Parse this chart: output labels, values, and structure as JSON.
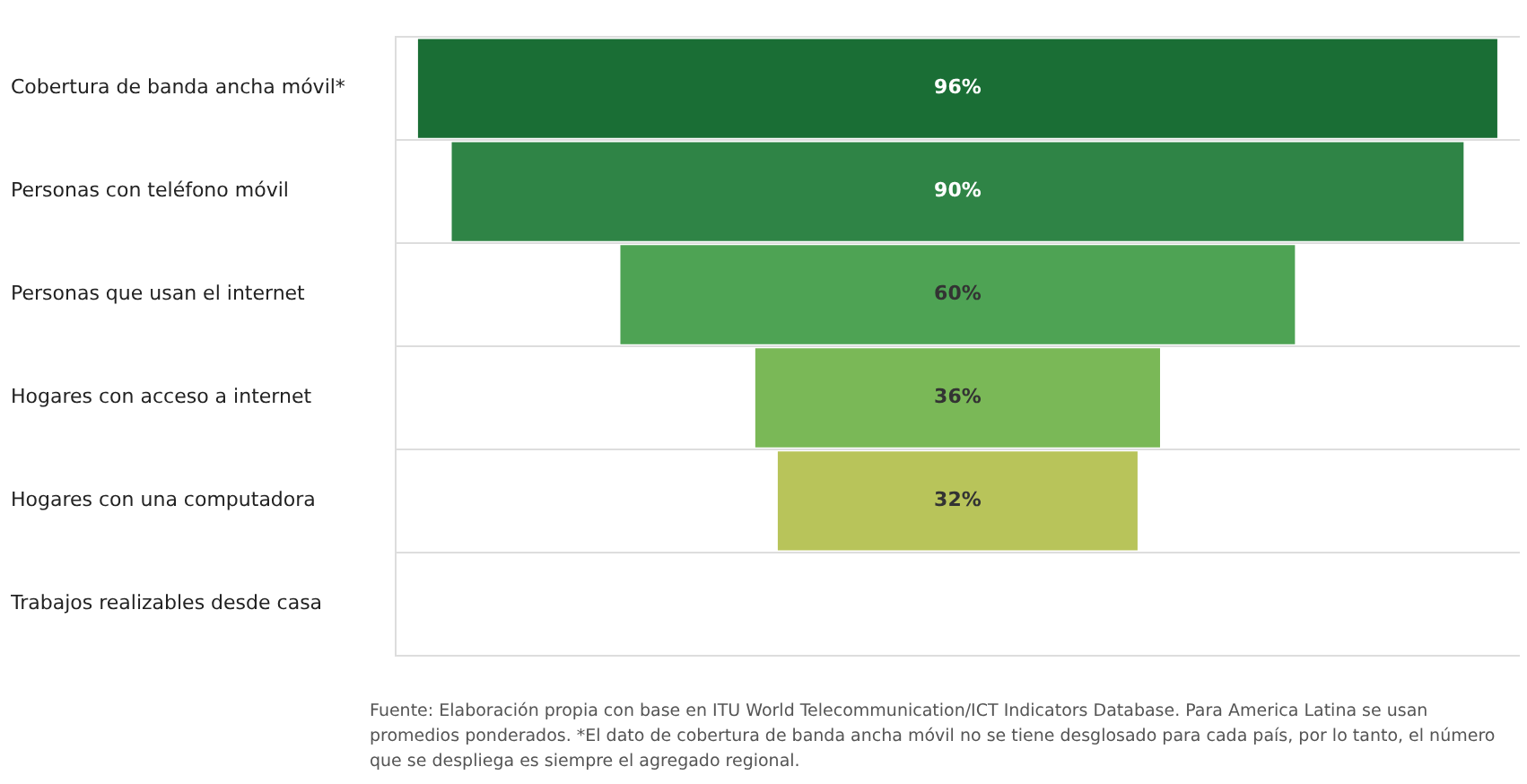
{
  "chart_data": {
    "type": "other",
    "categories": [
      "Cobertura de banda ancha móvil*",
      "Personas con teléfono móvil",
      "Personas que usan el internet",
      "Hogares con acceso a internet",
      "Hogares con una computadora",
      "Trabajos realizables desde casa"
    ],
    "values": [
      96,
      90,
      60,
      36,
      32,
      null
    ],
    "colors": [
      "#1a6e35",
      "#2f8446",
      "#4ea354",
      "#7ab857",
      "#b8c45a",
      null
    ],
    "value_labels": [
      "96%",
      "90%",
      "60%",
      "36%",
      "32%",
      null
    ],
    "annotations": [
      "Fuente: Elaboración propia con base en ITU World Telecommunication/ICT Indicators Database. Para America Latina se usan promedios ponderados. *El dato de cobertura de banda ancha móvil no se tiene desglosado para cada país, por lo tanto, el número que se despliega es siempre el agregado regional."
    ]
  }
}
